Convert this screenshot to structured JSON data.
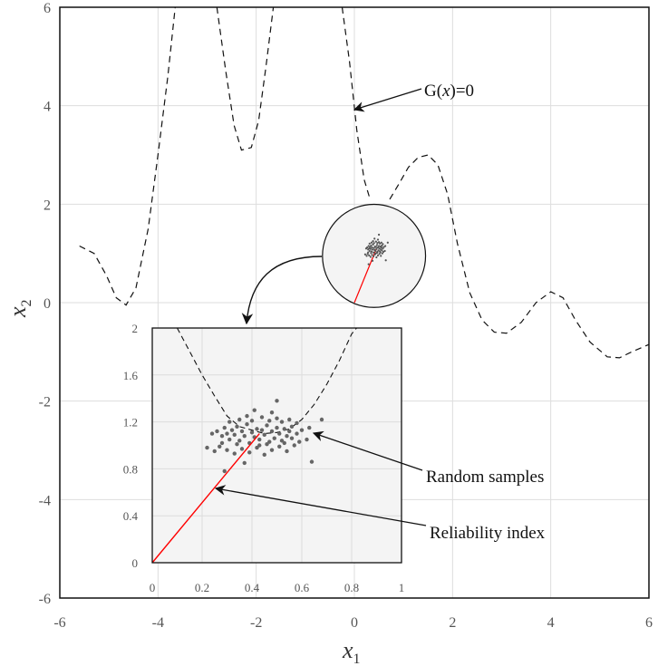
{
  "chart_data": {
    "type": "scatter",
    "main": {
      "xlabel": "x",
      "xlabel_sub": "1",
      "ylabel": "x",
      "ylabel_sub": "2",
      "xlim": [
        -6,
        6
      ],
      "ylim": [
        -6,
        6
      ],
      "x_ticks": [
        "-6",
        "-4",
        "-2",
        "0",
        "2",
        "4",
        "6"
      ],
      "y_ticks": [
        "-6",
        "-4",
        "-2",
        "0",
        "2",
        "4",
        "6"
      ],
      "grid": true,
      "limit_state_curve": {
        "style": "dashed",
        "segments": [
          [
            [
              -5.6,
              1.15
            ],
            [
              -5.3,
              1.0
            ],
            [
              -5.05,
              0.55
            ],
            [
              -4.85,
              0.1
            ],
            [
              -4.65,
              -0.05
            ],
            [
              -4.45,
              0.3
            ],
            [
              -4.2,
              1.5
            ],
            [
              -4.0,
              3.0
            ],
            [
              -3.8,
              4.6
            ],
            [
              -3.65,
              6.0
            ]
          ],
          [
            [
              -2.8,
              6.0
            ],
            [
              -2.62,
              4.7
            ],
            [
              -2.45,
              3.6
            ],
            [
              -2.3,
              3.1
            ],
            [
              -2.1,
              3.15
            ],
            [
              -1.95,
              3.7
            ],
            [
              -1.8,
              4.8
            ],
            [
              -1.65,
              6.0
            ]
          ],
          [
            [
              -0.25,
              6.0
            ],
            [
              -0.1,
              4.9
            ],
            [
              0.05,
              3.5
            ],
            [
              0.2,
              2.5
            ],
            [
              0.32,
              2.1
            ]
          ],
          [
            [
              0.72,
              2.1
            ],
            [
              0.9,
              2.4
            ],
            [
              1.1,
              2.75
            ],
            [
              1.3,
              2.95
            ],
            [
              1.5,
              3.0
            ],
            [
              1.7,
              2.8
            ],
            [
              1.9,
              2.2
            ],
            [
              2.1,
              1.2
            ],
            [
              2.35,
              0.2
            ],
            [
              2.6,
              -0.35
            ],
            [
              2.85,
              -0.6
            ],
            [
              3.1,
              -0.62
            ],
            [
              3.4,
              -0.4
            ],
            [
              3.7,
              0.0
            ],
            [
              4.0,
              0.22
            ],
            [
              4.25,
              0.1
            ],
            [
              4.5,
              -0.35
            ],
            [
              4.8,
              -0.8
            ],
            [
              5.15,
              -1.1
            ],
            [
              5.4,
              -1.12
            ],
            [
              5.65,
              -1.0
            ],
            [
              6.0,
              -0.85
            ]
          ]
        ]
      },
      "zoom_circle": {
        "center": [
          0.4,
          0.95
        ],
        "radius": 1.05
      },
      "reliability_line": [
        [
          0,
          0
        ],
        [
          0.45,
          1.1
        ]
      ]
    },
    "inset": {
      "xlim": [
        0,
        1
      ],
      "ylim": [
        0,
        2
      ],
      "x_ticks": [
        "0",
        "0.2",
        "0.4",
        "0.6",
        "0.8",
        "1"
      ],
      "y_ticks": [
        "0",
        "0.4",
        "0.8",
        "1.2",
        "1.6",
        "2"
      ],
      "limit_state_curve": [
        [
          0.1,
          2.0
        ],
        [
          0.15,
          1.8
        ],
        [
          0.2,
          1.6
        ],
        [
          0.25,
          1.42
        ],
        [
          0.3,
          1.25
        ],
        [
          0.35,
          1.16
        ],
        [
          0.4,
          1.13
        ],
        [
          0.45,
          1.1
        ],
        [
          0.5,
          1.11
        ],
        [
          0.55,
          1.14
        ],
        [
          0.6,
          1.22
        ],
        [
          0.65,
          1.35
        ],
        [
          0.7,
          1.52
        ],
        [
          0.75,
          1.72
        ],
        [
          0.8,
          1.95
        ],
        [
          0.82,
          2.0
        ]
      ],
      "reliability_index": {
        "from": [
          0,
          0
        ],
        "to": [
          0.43,
          1.1
        ],
        "color": "#ff0000"
      },
      "samples": [
        [
          0.26,
          1.12
        ],
        [
          0.28,
          1.08
        ],
        [
          0.29,
          1.15
        ],
        [
          0.3,
          1.1
        ],
        [
          0.31,
          1.05
        ],
        [
          0.32,
          1.13
        ],
        [
          0.33,
          1.09
        ],
        [
          0.34,
          1.16
        ],
        [
          0.35,
          1.04
        ],
        [
          0.36,
          1.12
        ],
        [
          0.37,
          1.08
        ],
        [
          0.38,
          1.18
        ],
        [
          0.39,
          1.02
        ],
        [
          0.4,
          1.11
        ],
        [
          0.41,
          1.07
        ],
        [
          0.42,
          1.14
        ],
        [
          0.43,
          1.0
        ],
        [
          0.44,
          1.13
        ],
        [
          0.45,
          1.09
        ],
        [
          0.46,
          1.17
        ],
        [
          0.47,
          1.03
        ],
        [
          0.48,
          1.12
        ],
        [
          0.49,
          1.06
        ],
        [
          0.5,
          1.15
        ],
        [
          0.51,
          1.1
        ],
        [
          0.52,
          1.04
        ],
        [
          0.53,
          1.14
        ],
        [
          0.54,
          1.08
        ],
        [
          0.55,
          1.12
        ],
        [
          0.56,
          1.06
        ],
        [
          0.58,
          1.1
        ],
        [
          0.6,
          1.13
        ],
        [
          0.22,
          0.98
        ],
        [
          0.25,
          0.95
        ],
        [
          0.27,
          0.99
        ],
        [
          0.3,
          0.96
        ],
        [
          0.33,
          0.93
        ],
        [
          0.36,
          0.97
        ],
        [
          0.39,
          0.94
        ],
        [
          0.42,
          0.98
        ],
        [
          0.45,
          0.92
        ],
        [
          0.48,
          0.96
        ],
        [
          0.51,
          0.99
        ],
        [
          0.54,
          0.95
        ],
        [
          0.57,
          1.0
        ],
        [
          0.31,
          1.2
        ],
        [
          0.35,
          1.22
        ],
        [
          0.4,
          1.21
        ],
        [
          0.44,
          1.24
        ],
        [
          0.47,
          1.21
        ],
        [
          0.5,
          1.23
        ],
        [
          0.52,
          1.2
        ],
        [
          0.55,
          1.22
        ],
        [
          0.58,
          1.19
        ],
        [
          0.41,
          1.3
        ],
        [
          0.48,
          1.28
        ],
        [
          0.5,
          1.38
        ],
        [
          0.38,
          1.25
        ],
        [
          0.62,
          1.05
        ],
        [
          0.63,
          1.15
        ],
        [
          0.68,
          1.22
        ],
        [
          0.64,
          0.86
        ],
        [
          0.29,
          0.78
        ],
        [
          0.37,
          0.85
        ],
        [
          0.43,
          1.05
        ],
        [
          0.46,
          1.01
        ],
        [
          0.34,
          1.01
        ],
        [
          0.53,
          1.02
        ],
        [
          0.24,
          1.1
        ],
        [
          0.56,
          1.16
        ],
        [
          0.28,
          1.02
        ],
        [
          0.59,
          1.03
        ]
      ],
      "sample_color": "#666666"
    },
    "annotations": {
      "limit_state": "G(x)=0",
      "random_samples": "Random samples",
      "reliability_index": "Reliability index"
    }
  }
}
